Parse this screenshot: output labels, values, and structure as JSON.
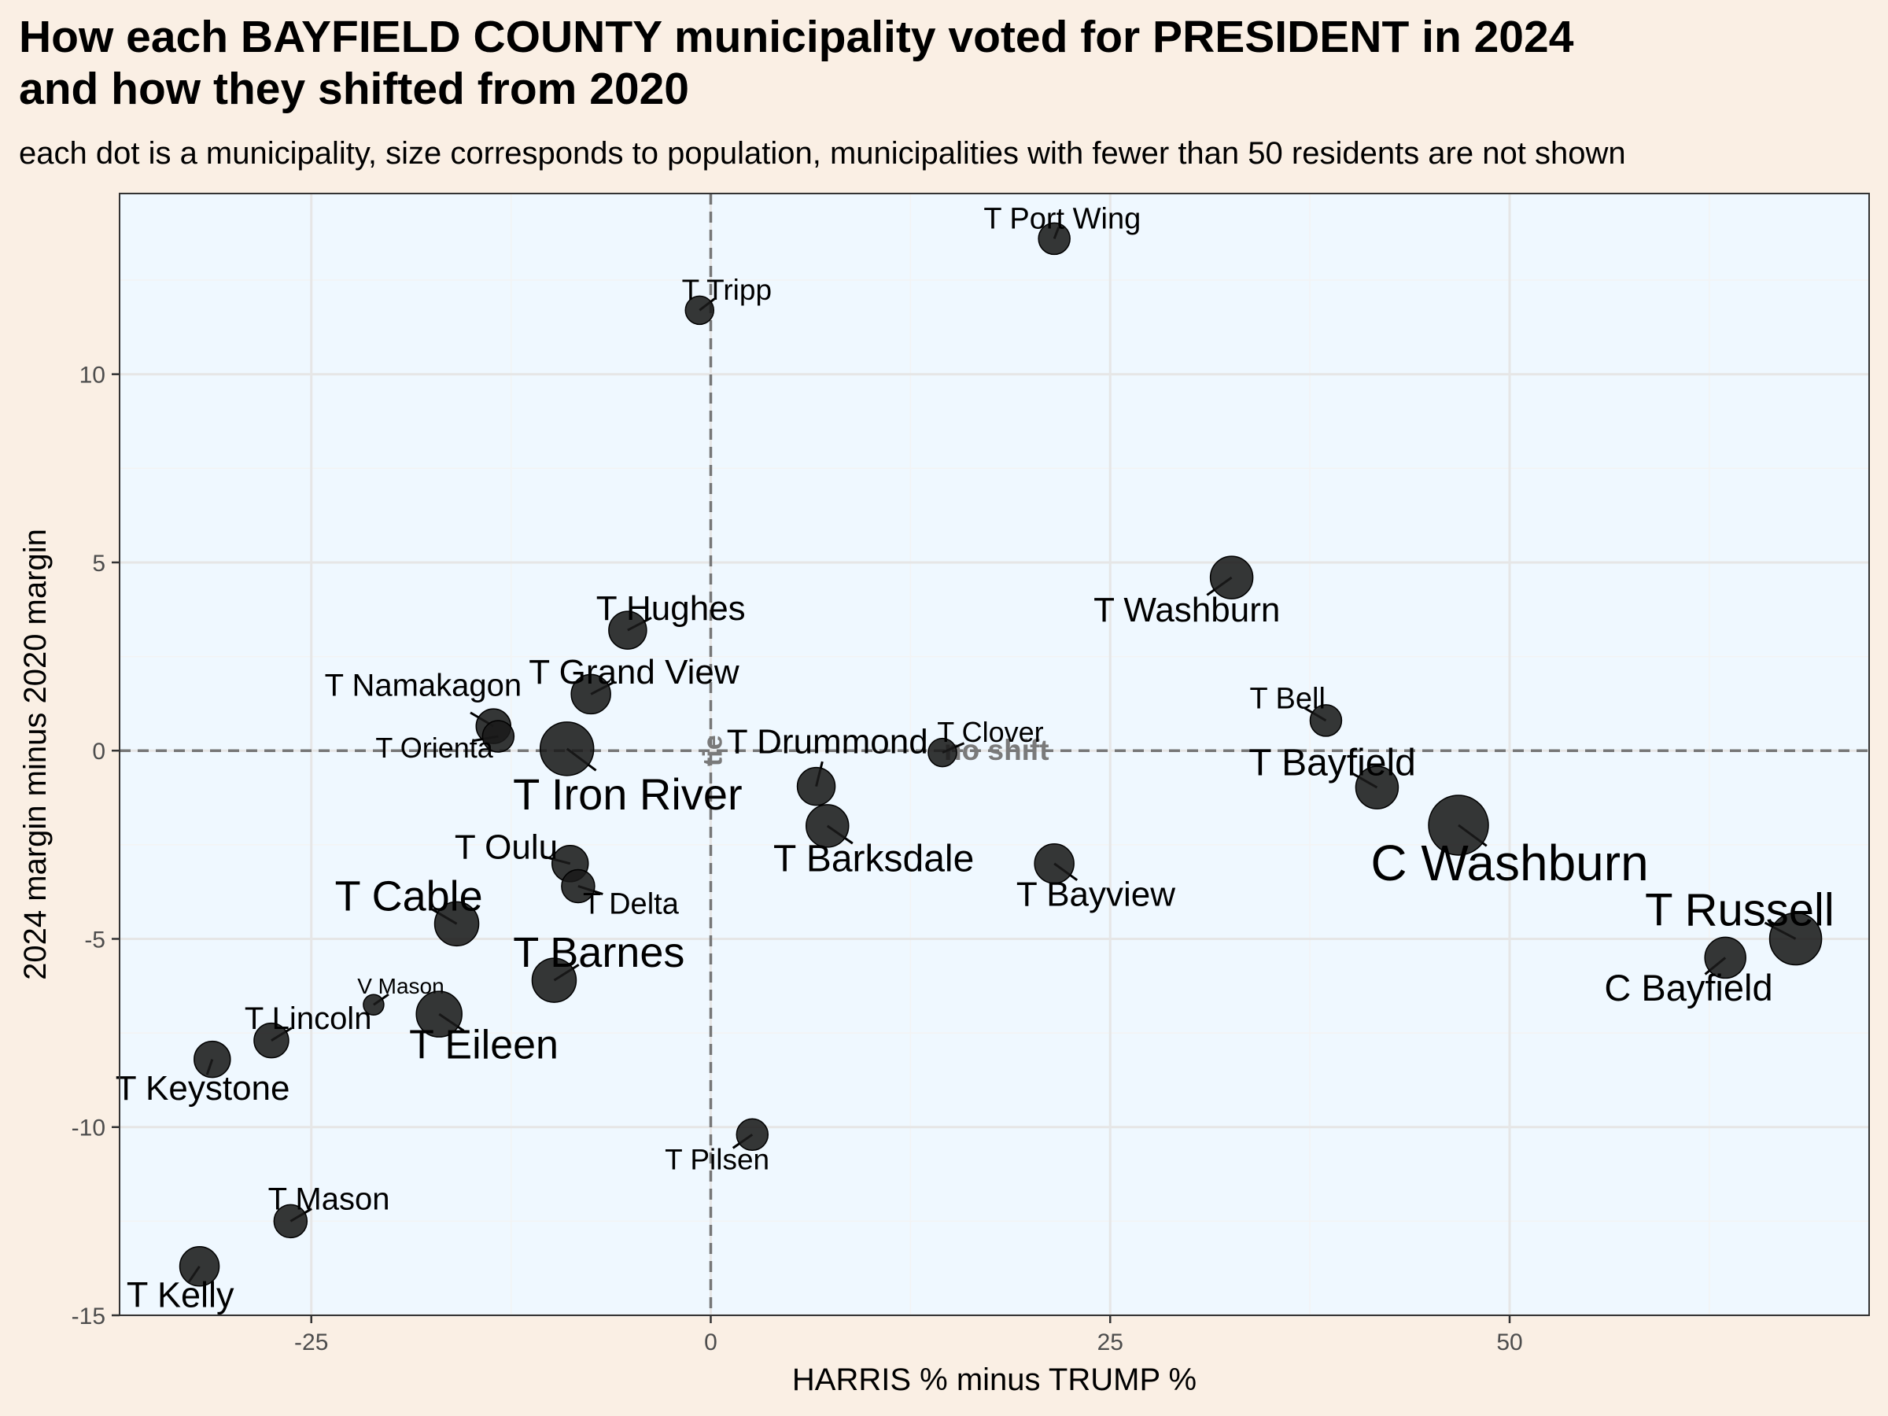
{
  "header": {
    "title_line1": "How each BAYFIELD COUNTY municipality voted for PRESIDENT in 2024",
    "title_line2": "and how they shifted from 2020",
    "subtitle": "each dot is a municipality, size corresponds to population, municipalities with fewer than 50 residents are not shown"
  },
  "chart_data": {
    "type": "scatter",
    "xlabel": "HARRIS % minus TRUMP %",
    "ylabel": "2024 margin minus 2020 margin",
    "xlim": [
      -37,
      72.5
    ],
    "ylim": [
      -15,
      14.8
    ],
    "x_ticks": [
      -25,
      0,
      25,
      50
    ],
    "x_tick_labels": [
      "-25",
      "0",
      "25",
      "50"
    ],
    "y_ticks": [
      -15,
      -10,
      -5,
      0,
      5,
      10
    ],
    "y_tick_labels": [
      "-15",
      "-10",
      "-5",
      "0",
      "5",
      "10"
    ],
    "grid": true,
    "reference_lines": [
      {
        "axis": "x",
        "value": 0,
        "label": "tie"
      },
      {
        "axis": "y",
        "value": 0,
        "label": "no shift"
      }
    ],
    "colors": {
      "panel_background": "#eff8ff",
      "point": "#1a1a1a",
      "reference_line": "#777777",
      "grid": "#e6e6e6"
    },
    "points": [
      {
        "name": "T Port Wing",
        "x": 21.5,
        "y": 13.6,
        "size": 1.2,
        "label_dx": 0.5,
        "label_dy": 0.55,
        "label_size": 1.0
      },
      {
        "name": "T Tripp",
        "x": -0.7,
        "y": 11.7,
        "size": 1.0,
        "label_dx": 1.7,
        "label_dy": 0.55,
        "label_size": 0.95
      },
      {
        "name": "T Washburn",
        "x": 32.6,
        "y": 4.6,
        "size": 1.9,
        "label_dx": -2.8,
        "label_dy": -0.85,
        "label_size": 1.35
      },
      {
        "name": "T Hughes",
        "x": -5.2,
        "y": 3.2,
        "size": 1.6,
        "label_dx": 2.7,
        "label_dy": 0.6,
        "label_size": 1.35
      },
      {
        "name": "T Grand View",
        "x": -7.5,
        "y": 1.5,
        "size": 1.7,
        "label_dx": 2.7,
        "label_dy": 0.6,
        "label_size": 1.35
      },
      {
        "name": "T Namakagon",
        "x": -13.6,
        "y": 0.65,
        "size": 1.4,
        "label_dx": -4.4,
        "label_dy": 1.1,
        "label_size": 1.1
      },
      {
        "name": "T Orienta",
        "x": -13.3,
        "y": 0.38,
        "size": 1.2,
        "label_dx": -4.0,
        "label_dy": -0.3,
        "label_size": 0.85
      },
      {
        "name": "T Iron River",
        "x": -9.0,
        "y": 0.05,
        "size": 2.6,
        "label_dx": 3.8,
        "label_dy": -1.2,
        "label_size": 2.1
      },
      {
        "name": "T Drummond",
        "x": 6.6,
        "y": -0.95,
        "size": 1.6,
        "label_dx": 0.7,
        "label_dy": 1.2,
        "label_size": 1.35
      },
      {
        "name": "T Clover",
        "x": 14.5,
        "y": -0.05,
        "size": 1.0,
        "label_dx": 3.0,
        "label_dy": 0.55,
        "label_size": 0.9
      },
      {
        "name": "T Bell",
        "x": 38.5,
        "y": 0.8,
        "size": 1.2,
        "label_dx": -2.4,
        "label_dy": 0.6,
        "label_size": 1.0
      },
      {
        "name": "T Bayfield",
        "x": 41.7,
        "y": -0.98,
        "size": 1.9,
        "label_dx": -2.8,
        "label_dy": 0.68,
        "label_size": 1.6
      },
      {
        "name": "C Washburn",
        "x": 46.8,
        "y": -1.98,
        "size": 3.0,
        "label_dx": 3.2,
        "label_dy": -1.0,
        "label_size": 2.65
      },
      {
        "name": "T Barksdale",
        "x": 7.3,
        "y": -2.0,
        "size": 1.9,
        "label_dx": 2.9,
        "label_dy": -0.85,
        "label_size": 1.6
      },
      {
        "name": "T Bayview",
        "x": 21.5,
        "y": -3.0,
        "size": 1.7,
        "label_dx": 2.6,
        "label_dy": -0.8,
        "label_size": 1.35
      },
      {
        "name": "T Oulu",
        "x": -8.8,
        "y": -3.0,
        "size": 1.5,
        "label_dx": -4.0,
        "label_dy": 0.45,
        "label_size": 1.35
      },
      {
        "name": "T Delta",
        "x": -8.3,
        "y": -3.6,
        "size": 1.3,
        "label_dx": 3.3,
        "label_dy": -0.45,
        "label_size": 1.0
      },
      {
        "name": "T Cable",
        "x": -15.9,
        "y": -4.6,
        "size": 2.0,
        "label_dx": -3.0,
        "label_dy": 0.75,
        "label_size": 2.0
      },
      {
        "name": "T Barnes",
        "x": -9.8,
        "y": -6.1,
        "size": 2.0,
        "label_dx": 2.8,
        "label_dy": 0.75,
        "label_size": 2.0
      },
      {
        "name": "T Russell",
        "x": 67.9,
        "y": -5.0,
        "size": 2.5,
        "label_dx": -3.5,
        "label_dy": 0.78,
        "label_size": 2.25
      },
      {
        "name": "C Bayfield",
        "x": 63.5,
        "y": -5.5,
        "size": 1.8,
        "label_dx": -2.3,
        "label_dy": -0.8,
        "label_size": 1.55
      },
      {
        "name": "V Mason",
        "x": -21.1,
        "y": -6.75,
        "size": 0.5,
        "label_dx": 1.7,
        "label_dy": 0.5,
        "label_size": 0.35
      },
      {
        "name": "T Lincoln",
        "x": -27.5,
        "y": -7.7,
        "size": 1.4,
        "label_dx": 2.3,
        "label_dy": 0.6,
        "label_size": 1.1
      },
      {
        "name": "T Eileen",
        "x": -17.0,
        "y": -7.0,
        "size": 2.1,
        "label_dx": 2.8,
        "label_dy": -0.8,
        "label_size": 1.9
      },
      {
        "name": "T Keystone",
        "x": -31.2,
        "y": -8.2,
        "size": 1.5,
        "label_dx": -0.6,
        "label_dy": -0.75,
        "label_size": 1.35
      },
      {
        "name": "T Pilsen",
        "x": 2.6,
        "y": -10.2,
        "size": 1.2,
        "label_dx": -2.2,
        "label_dy": -0.65,
        "label_size": 0.95
      },
      {
        "name": "T Mason",
        "x": -26.3,
        "y": -12.5,
        "size": 1.3,
        "label_dx": 2.4,
        "label_dy": 0.6,
        "label_size": 1.1
      },
      {
        "name": "T Kelly",
        "x": -32.0,
        "y": -13.7,
        "size": 1.7,
        "label_dx": -1.2,
        "label_dy": -0.75,
        "label_size": 1.45
      }
    ]
  }
}
